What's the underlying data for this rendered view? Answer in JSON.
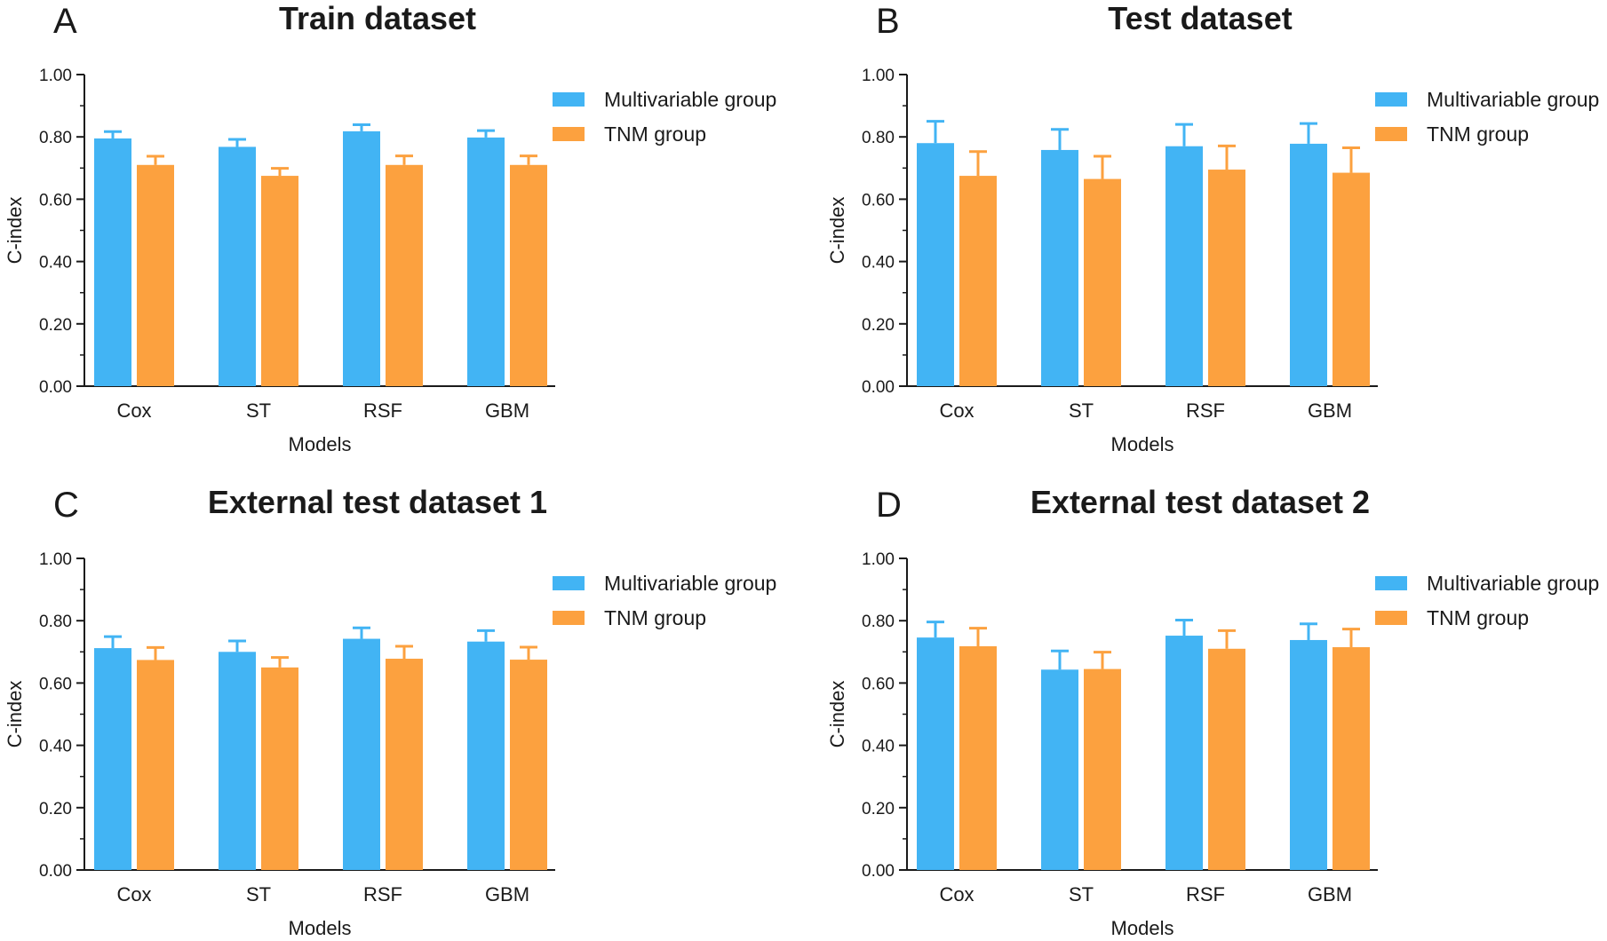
{
  "colors": {
    "multivariable": "#42b4f4",
    "tnm": "#fca13f",
    "axis": "#1a1a1a"
  },
  "chart_data": [
    {
      "type": "bar",
      "panel": "A",
      "title": "Train dataset",
      "xlabel": "Models",
      "ylabel": "C-index",
      "ylim": [
        0,
        1.0
      ],
      "yticks": [
        "0.00",
        "0.20",
        "0.40",
        "0.60",
        "0.80",
        "1.00"
      ],
      "categories": [
        "Cox",
        "ST",
        "RSF",
        "GBM"
      ],
      "series": [
        {
          "name": "Multivariable group",
          "values": [
            0.795,
            0.768,
            0.818,
            0.798
          ],
          "errors": [
            0.022,
            0.024,
            0.021,
            0.022
          ]
        },
        {
          "name": "TNM group",
          "values": [
            0.71,
            0.675,
            0.71,
            0.71
          ],
          "errors": [
            0.028,
            0.024,
            0.029,
            0.029
          ]
        }
      ],
      "legend": "top-right",
      "grid": false
    },
    {
      "type": "bar",
      "panel": "B",
      "title": "Test dataset",
      "xlabel": "Models",
      "ylabel": "C-index",
      "ylim": [
        0,
        1.0
      ],
      "yticks": [
        "0.00",
        "0.20",
        "0.40",
        "0.60",
        "0.80",
        "1.00"
      ],
      "categories": [
        "Cox",
        "ST",
        "RSF",
        "GBM"
      ],
      "series": [
        {
          "name": "Multivariable group",
          "values": [
            0.78,
            0.758,
            0.77,
            0.778
          ],
          "errors": [
            0.07,
            0.066,
            0.07,
            0.065
          ]
        },
        {
          "name": "TNM group",
          "values": [
            0.675,
            0.665,
            0.695,
            0.685
          ],
          "errors": [
            0.078,
            0.073,
            0.076,
            0.08
          ]
        }
      ],
      "legend": "top-right",
      "grid": false
    },
    {
      "type": "bar",
      "panel": "C",
      "title": "External test dataset 1",
      "xlabel": "Models",
      "ylabel": "C-index",
      "ylim": [
        0,
        1.0
      ],
      "yticks": [
        "0.00",
        "0.20",
        "0.40",
        "0.60",
        "0.80",
        "1.00"
      ],
      "categories": [
        "Cox",
        "ST",
        "RSF",
        "GBM"
      ],
      "series": [
        {
          "name": "Multivariable group",
          "values": [
            0.712,
            0.7,
            0.742,
            0.733
          ],
          "errors": [
            0.037,
            0.035,
            0.035,
            0.035
          ]
        },
        {
          "name": "TNM group",
          "values": [
            0.674,
            0.65,
            0.678,
            0.675
          ],
          "errors": [
            0.04,
            0.032,
            0.04,
            0.04
          ]
        }
      ],
      "legend": "top-right",
      "grid": false
    },
    {
      "type": "bar",
      "panel": "D",
      "title": "External test dataset 2",
      "xlabel": "Models",
      "ylabel": "C-index",
      "ylim": [
        0,
        1.0
      ],
      "yticks": [
        "0.00",
        "0.20",
        "0.40",
        "0.60",
        "0.80",
        "1.00"
      ],
      "categories": [
        "Cox",
        "ST",
        "RSF",
        "GBM"
      ],
      "series": [
        {
          "name": "Multivariable group",
          "values": [
            0.746,
            0.643,
            0.752,
            0.738
          ],
          "errors": [
            0.05,
            0.06,
            0.05,
            0.052
          ]
        },
        {
          "name": "TNM group",
          "values": [
            0.718,
            0.645,
            0.71,
            0.715
          ],
          "errors": [
            0.058,
            0.054,
            0.058,
            0.058
          ]
        }
      ],
      "legend": "top-right",
      "grid": false
    }
  ]
}
